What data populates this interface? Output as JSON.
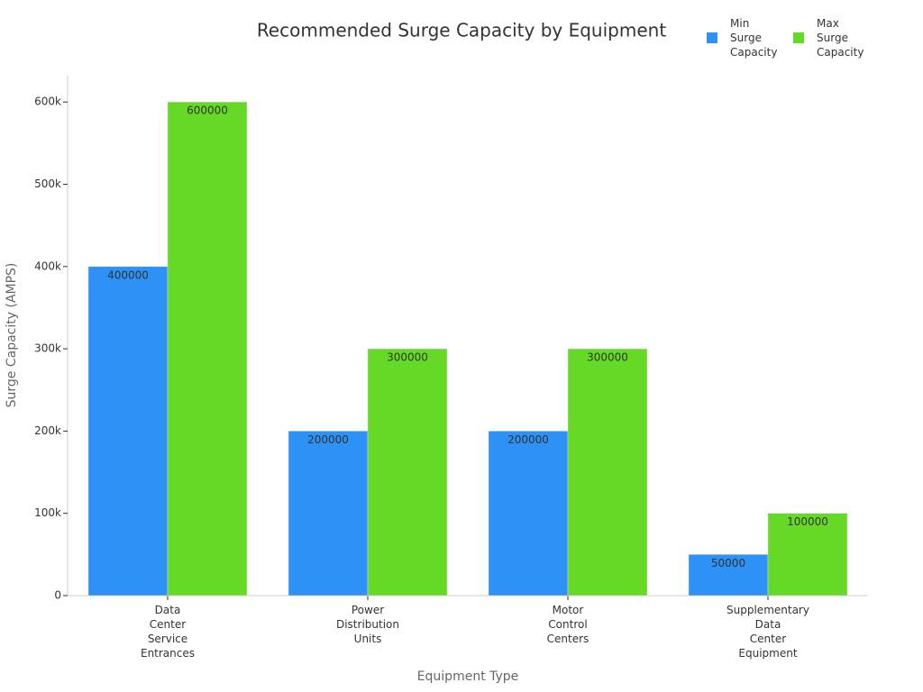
{
  "chart_data": {
    "type": "bar",
    "title": "Recommended Surge Capacity by Equipment",
    "x_label": "Equipment Type",
    "y_label": "Surge Capacity (AMPS)",
    "categories": [
      "Data Center Service Entrances",
      "Power Distribution Units",
      "Motor Control Centers",
      "Supplementary Data Center Equipment"
    ],
    "series": [
      {
        "name": "Min Surge Capacity",
        "color": "#2e91f5",
        "values": [
          400000,
          200000,
          200000,
          50000
        ]
      },
      {
        "name": "Max Surge Capacity",
        "color": "#66d926",
        "values": [
          600000,
          300000,
          300000,
          100000
        ]
      }
    ],
    "ylim": [
      0,
      632000
    ],
    "yticks": [
      0,
      {
        "value": 100000,
        "label": "100k"
      },
      {
        "value": 200000,
        "label": "200k"
      },
      {
        "value": 300000,
        "label": "300k"
      },
      {
        "value": 400000,
        "label": "400k"
      },
      {
        "value": 500000,
        "label": "500k"
      },
      {
        "value": 600000,
        "label": "600k"
      }
    ],
    "legend": "top-right",
    "grid": false
  }
}
